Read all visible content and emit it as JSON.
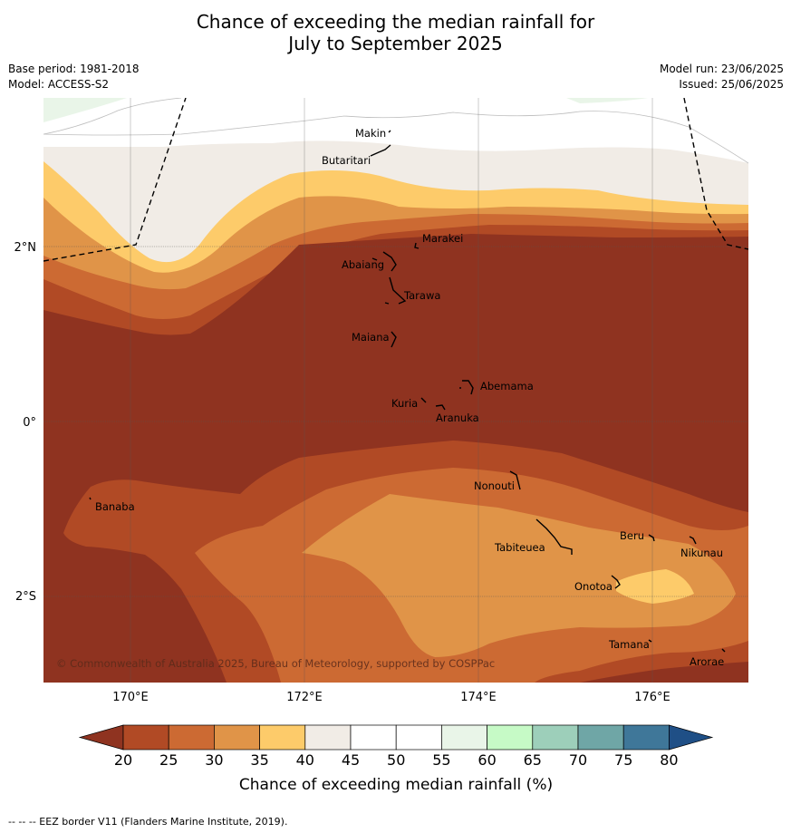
{
  "title_line1": "Chance of exceeding the median rainfall for",
  "title_line2": "July to September 2025",
  "meta_left": {
    "base_period": "Base period: 1981-2018",
    "model": "Model: ACCESS-S2"
  },
  "meta_right": {
    "model_run": "Model run: 23/06/2025",
    "issued": "Issued: 25/06/2025"
  },
  "axis": {
    "lat_labels": [
      "2°N",
      "0°",
      "2°S"
    ],
    "lon_labels": [
      "170°E",
      "172°E",
      "174°E",
      "176°E"
    ]
  },
  "islands": [
    "Makin",
    "Butaritari",
    "Marakei",
    "Abaiang",
    "Tarawa",
    "Maiana",
    "Abemama",
    "Kuria",
    "Aranuka",
    "Nonouti",
    "Banaba",
    "Tabiteuea",
    "Beru",
    "Nikunau",
    "Onotoa",
    "Tamana",
    "Arorae"
  ],
  "copyright": "© Commonwealth of Australia 2025, Bureau of Meteorology, supported by COSPPac",
  "colorbar": {
    "ticks": [
      "20",
      "25",
      "30",
      "35",
      "40",
      "45",
      "50",
      "55",
      "60",
      "65",
      "70",
      "75",
      "80"
    ],
    "colors": [
      "#b14a25",
      "#cc6a33",
      "#e09448",
      "#fdcb6a",
      "#f1ece6",
      "#ffffff",
      "#ffffff",
      "#e9f5e8",
      "#c6fac6",
      "#9dcfba",
      "#6fa6a6",
      "#3f7799"
    ],
    "under_color": "#8f3320",
    "over_color": "#1f4f86",
    "label": "Chance of exceeding median rainfall (%)"
  },
  "footnote": "--  --  -- EEZ border V11 (Flanders Marine Institute, 2019)."
}
